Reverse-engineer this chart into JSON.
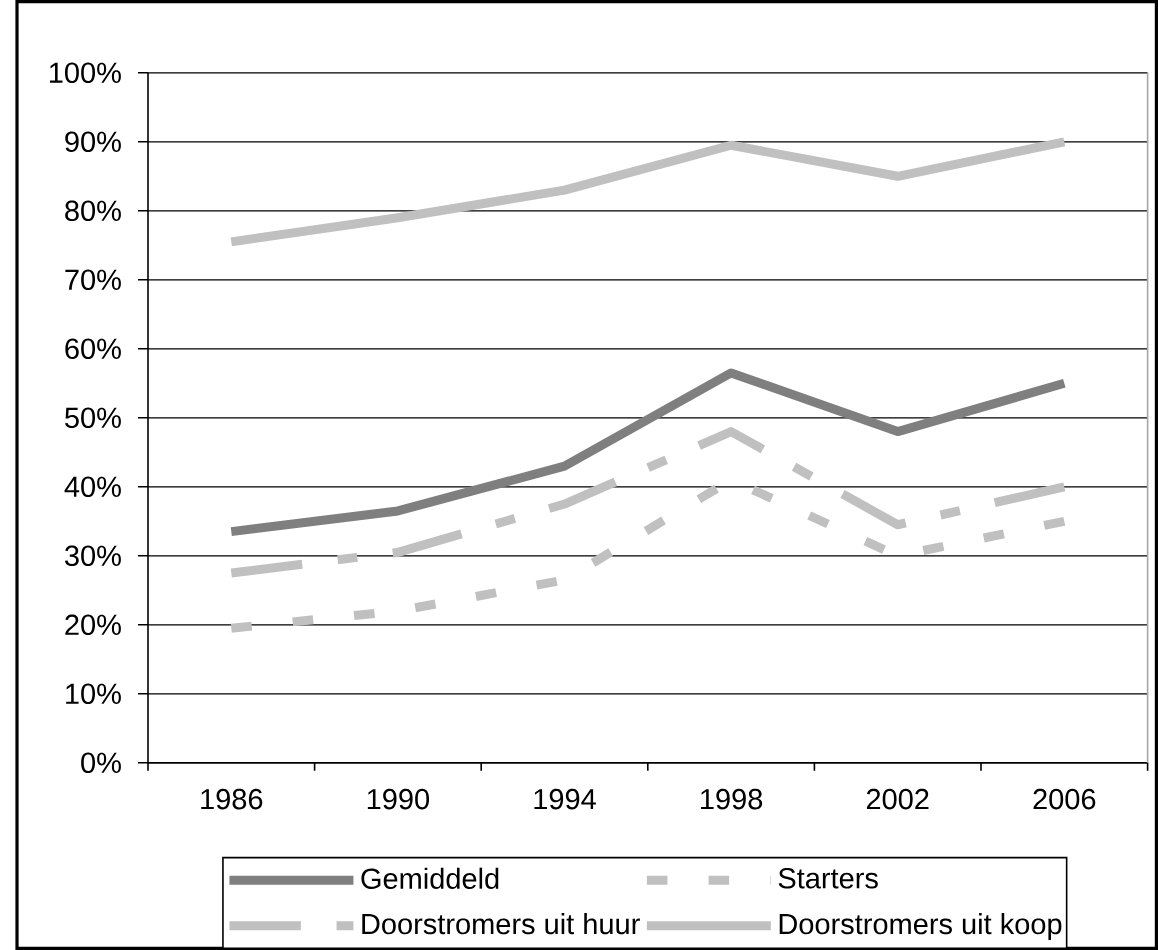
{
  "chart_data": {
    "type": "line",
    "categories": [
      "1986",
      "1990",
      "1994",
      "1998",
      "2002",
      "2006"
    ],
    "series": [
      {
        "name": "Gemiddeld",
        "color": "#7f7f7f",
        "line_style": "solid",
        "values": [
          33.5,
          36.5,
          43,
          56.5,
          48,
          55
        ]
      },
      {
        "name": "Starters",
        "color": "#c0c0c0",
        "line_style": "dashed",
        "values": [
          19.5,
          22,
          26.5,
          41,
          30,
          35
        ]
      },
      {
        "name": "Doorstromers uit huur",
        "color": "#c0c0c0",
        "line_style": "dashdot",
        "values": [
          27.5,
          30.5,
          37.5,
          48,
          34.5,
          40
        ]
      },
      {
        "name": "Doorstromers uit koop",
        "color": "#c0c0c0",
        "line_style": "solid",
        "values": [
          75.5,
          79,
          83,
          89.5,
          85,
          90
        ]
      }
    ],
    "ylim": [
      0,
      100
    ],
    "yticks": [
      {
        "value": 0,
        "label": "0%"
      },
      {
        "value": 10,
        "label": "10%"
      },
      {
        "value": 20,
        "label": "20%"
      },
      {
        "value": 30,
        "label": "30%"
      },
      {
        "value": 40,
        "label": "40%"
      },
      {
        "value": 50,
        "label": "50%"
      },
      {
        "value": 60,
        "label": "60%"
      },
      {
        "value": 70,
        "label": "70%"
      },
      {
        "value": 80,
        "label": "80%"
      },
      {
        "value": 90,
        "label": "90%"
      },
      {
        "value": 100,
        "label": "100%"
      }
    ],
    "grid": "y",
    "legend": "bottom"
  }
}
